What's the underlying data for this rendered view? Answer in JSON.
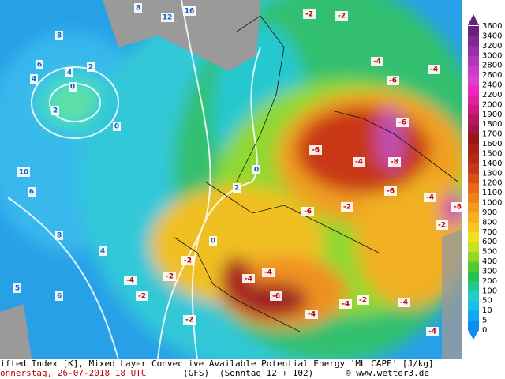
{
  "map": {
    "labels": [
      "8",
      "12",
      "16",
      "8",
      "6",
      "4",
      "2",
      "0",
      "2",
      "4",
      "10",
      "6",
      "8",
      "6",
      "5",
      "0",
      "4",
      "-2",
      "-2",
      "-4",
      "-6",
      "-4",
      "-6",
      "-6",
      "-4",
      "-8",
      "-6",
      "-4",
      "-6",
      "-2",
      "-4",
      "-4",
      "-6",
      "-4",
      "-4",
      "-2",
      "-4",
      "0",
      "2",
      "0",
      "-2",
      "-2",
      "-4",
      "-2",
      "-2",
      "-4",
      "-2",
      "-8"
    ]
  },
  "colorbar": {
    "labels": [
      0,
      5,
      10,
      50,
      100,
      200,
      300,
      400,
      500,
      600,
      700,
      800,
      900,
      1000,
      1100,
      1200,
      1300,
      1400,
      1500,
      1600,
      1700,
      1800,
      1900,
      2000,
      2200,
      2400,
      2600,
      2800,
      3000,
      3200,
      3400,
      3600
    ],
    "colors": [
      "#0a8cf0",
      "#10a8f0",
      "#18c0e8",
      "#20d0c8",
      "#20c890",
      "#28c050",
      "#50cc30",
      "#90d828",
      "#c8e020",
      "#f0e020",
      "#f8c820",
      "#f8b020",
      "#f89818",
      "#f08018",
      "#e86818",
      "#d85018",
      "#c83818",
      "#b82818",
      "#a82018",
      "#981818",
      "#a01840",
      "#b81860",
      "#d01880",
      "#e020a0",
      "#f028c0",
      "#e040d0",
      "#c840c8",
      "#b038b8",
      "#9830a8",
      "#802890",
      "#682078"
    ]
  },
  "footer": {
    "line1": "ifted Index [K], Mixed Layer Convective Available Potential Energy 'ML CAPE' [J/kg]",
    "date": "onnerstag, 26-07-2018  18 UTC",
    "model": "(GFS)",
    "run": "(Sonntag 12 + 102)",
    "credit": "© www.wetter3.de"
  }
}
